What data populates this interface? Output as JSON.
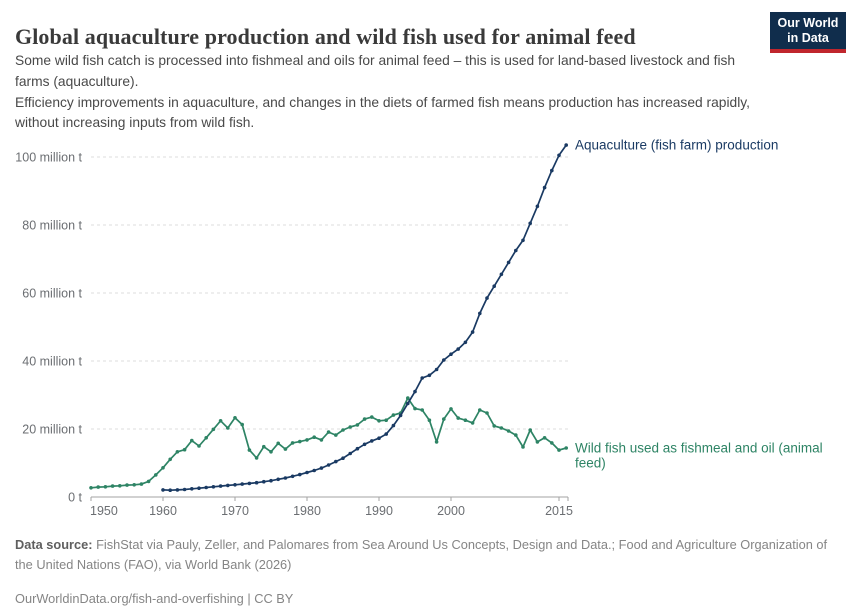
{
  "header": {
    "title": "Global aquaculture production and wild fish used for animal feed",
    "subtitle_para1": "Some wild fish catch is processed into fishmeal and oils for animal feed – this is used for land-based livestock and fish farms (aquaculture).",
    "subtitle_para2": "Efficiency improvements in aquaculture, and changes in the diets of farmed fish means production has increased rapidly, without increasing inputs from wild fish."
  },
  "logo": {
    "line1": "Our World",
    "line2": "in Data",
    "bg_color": "#102d4c",
    "bar_color": "#c0262d"
  },
  "chart_data": {
    "type": "line",
    "title": "Global aquaculture production and wild fish used for animal feed",
    "xlabel": "",
    "ylabel": "",
    "unit": "million t",
    "x_range": [
      1950,
      2016
    ],
    "ylim": [
      0,
      105
    ],
    "grid": "horizontal-dashed",
    "legend_position": "end-of-line-labels",
    "x_ticks": [
      1950,
      1960,
      1970,
      1980,
      1990,
      2000,
      2015
    ],
    "y_ticks": [
      {
        "value": 0,
        "label": "0 t"
      },
      {
        "value": 20,
        "label": "20 million t"
      },
      {
        "value": 40,
        "label": "40 million t"
      },
      {
        "value": 60,
        "label": "60 million t"
      },
      {
        "value": 80,
        "label": "80 million t"
      },
      {
        "value": 100,
        "label": "100 million t"
      }
    ],
    "series": [
      {
        "id": "fishmeal",
        "name": "Wild fish used as fishmeal and oil (animal feed)",
        "label_lines": [
          "Wild fish used as fishmeal and oil (animal",
          "feed)"
        ],
        "color": "#2e8465",
        "start_year": 1950,
        "values": [
          2.7,
          2.9,
          3.0,
          3.2,
          3.3,
          3.5,
          3.6,
          3.8,
          4.6,
          6.5,
          8.6,
          11.1,
          13.3,
          13.9,
          16.6,
          15.0,
          17.4,
          19.9,
          22.4,
          20.3,
          23.3,
          21.3,
          13.8,
          11.5,
          14.8,
          13.3,
          15.8,
          14.1,
          15.9,
          16.3,
          16.8,
          17.6,
          16.8,
          19.1,
          18.2,
          19.7,
          20.6,
          21.2,
          22.9,
          23.5,
          22.4,
          22.6,
          24.1,
          24.7,
          29.1,
          26.0,
          25.6,
          22.6,
          16.2,
          22.9,
          25.9,
          23.2,
          22.6,
          21.8,
          25.6,
          24.7,
          20.9,
          20.3,
          19.4,
          18.2,
          14.7,
          19.7,
          16.2,
          17.4,
          15.9,
          13.8,
          14.4
        ]
      },
      {
        "id": "aquaculture",
        "name": "Aquaculture (fish farm) production",
        "label_lines": [
          "Aquaculture (fish farm) production"
        ],
        "color": "#1a3a63",
        "start_year": 1960,
        "values": [
          2.1,
          2.0,
          2.1,
          2.2,
          2.4,
          2.6,
          2.8,
          3.0,
          3.2,
          3.4,
          3.6,
          3.8,
          4.0,
          4.2,
          4.5,
          4.8,
          5.2,
          5.6,
          6.1,
          6.6,
          7.2,
          7.8,
          8.5,
          9.4,
          10.4,
          11.4,
          12.8,
          14.2,
          15.5,
          16.5,
          17.3,
          18.5,
          21.0,
          24.0,
          27.5,
          31.0,
          35.0,
          35.8,
          37.5,
          40.3,
          42.0,
          43.5,
          45.5,
          48.5,
          54.0,
          58.5,
          62.0,
          65.5,
          69.0,
          72.5,
          75.5,
          80.5,
          85.5,
          91.0,
          96.0,
          100.5,
          103.5
        ]
      }
    ]
  },
  "footer": {
    "source_label": "Data source:",
    "source_text": " FishStat via Pauly, Zeller, and Palomares from Sea Around Us Concepts, Design and Data.; Food and Agriculture Organization of the United Nations (FAO), via World Bank (2026)",
    "url": "OurWorldinData.org/fish-and-overfishing",
    "separator": " | ",
    "license": "CC BY"
  }
}
